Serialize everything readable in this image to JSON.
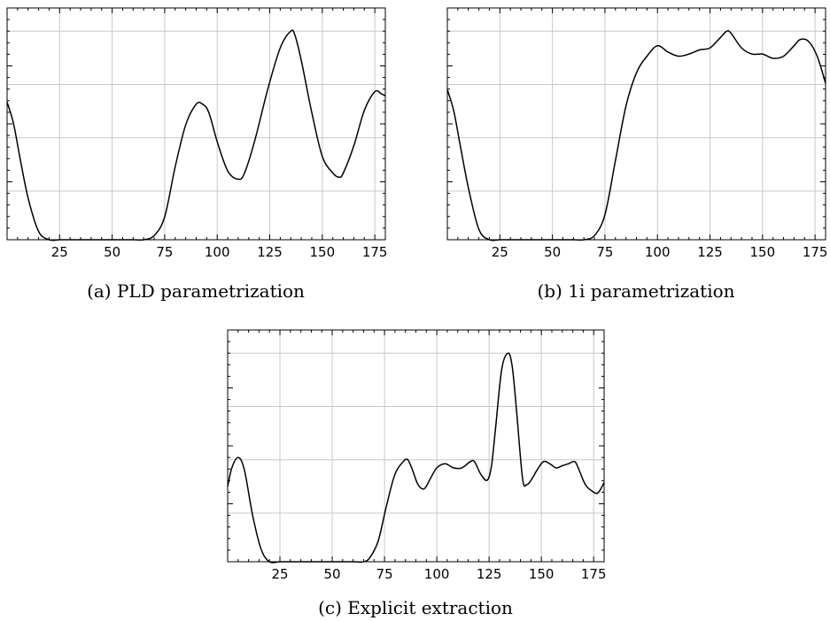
{
  "chart_data": [
    {
      "type": "line",
      "caption": "(a) PLD parametrization",
      "xlim": [
        0,
        180
      ],
      "ylim": [
        0,
        1
      ],
      "xticks": [
        25,
        50,
        75,
        100,
        125,
        150,
        175
      ],
      "grid": true,
      "series": [
        {
          "x": [
            0,
            3,
            6,
            10,
            15,
            20,
            25,
            30,
            40,
            50,
            60,
            65,
            70,
            75,
            80,
            85,
            90,
            93,
            96,
            100,
            105,
            110,
            113,
            118,
            124,
            130,
            135,
            137,
            140,
            145,
            150,
            155,
            158,
            160,
            165,
            170,
            175,
            178,
            180
          ],
          "y": [
            0.66,
            0.56,
            0.4,
            0.2,
            0.04,
            0.0,
            0.0,
            0.0,
            0.0,
            0.0,
            0.0,
            0.0,
            0.02,
            0.11,
            0.35,
            0.55,
            0.65,
            0.65,
            0.61,
            0.47,
            0.33,
            0.29,
            0.32,
            0.48,
            0.72,
            0.92,
            1.0,
            0.98,
            0.86,
            0.61,
            0.4,
            0.32,
            0.3,
            0.32,
            0.45,
            0.62,
            0.71,
            0.7,
            0.69
          ]
        }
      ]
    },
    {
      "type": "line",
      "caption": "(b) 1i parametrization",
      "xlim": [
        0,
        180
      ],
      "ylim": [
        0,
        1
      ],
      "xticks": [
        25,
        50,
        75,
        100,
        125,
        150,
        175
      ],
      "grid": true,
      "series": [
        {
          "x": [
            0,
            3,
            6,
            10,
            15,
            20,
            25,
            30,
            40,
            50,
            60,
            65,
            70,
            75,
            80,
            85,
            90,
            95,
            100,
            105,
            110,
            115,
            120,
            125,
            130,
            133,
            135,
            140,
            145,
            150,
            155,
            160,
            165,
            168,
            172,
            176,
            180
          ],
          "y": [
            0.72,
            0.62,
            0.46,
            0.25,
            0.05,
            0.0,
            0.0,
            0.0,
            0.0,
            0.0,
            0.0,
            0.0,
            0.02,
            0.12,
            0.38,
            0.64,
            0.8,
            0.88,
            0.93,
            0.9,
            0.88,
            0.89,
            0.91,
            0.92,
            0.97,
            1.0,
            0.99,
            0.92,
            0.89,
            0.89,
            0.87,
            0.88,
            0.93,
            0.96,
            0.95,
            0.88,
            0.75
          ]
        }
      ]
    },
    {
      "type": "line",
      "caption": "(c) Explicit extraction",
      "xlim": [
        0,
        180
      ],
      "ylim": [
        0,
        1
      ],
      "xticks": [
        25,
        50,
        75,
        100,
        125,
        150,
        175
      ],
      "grid": true,
      "series": [
        {
          "x": [
            0,
            2,
            5,
            8,
            12,
            16,
            20,
            25,
            30,
            40,
            50,
            60,
            65,
            68,
            72,
            76,
            80,
            84,
            86,
            88,
            91,
            94,
            97,
            100,
            104,
            108,
            112,
            116,
            118,
            121,
            124,
            126,
            128,
            131,
            134,
            136,
            138,
            141,
            143,
            145,
            148,
            151,
            154,
            157,
            160,
            163,
            166,
            168,
            171,
            174,
            177,
            180
          ],
          "y": [
            0.36,
            0.45,
            0.5,
            0.44,
            0.22,
            0.06,
            0.0,
            0.0,
            0.0,
            0.0,
            0.0,
            0.0,
            0.0,
            0.02,
            0.1,
            0.27,
            0.42,
            0.48,
            0.49,
            0.45,
            0.37,
            0.35,
            0.4,
            0.45,
            0.47,
            0.45,
            0.45,
            0.48,
            0.48,
            0.42,
            0.39,
            0.45,
            0.63,
            0.92,
            1.0,
            0.94,
            0.74,
            0.4,
            0.37,
            0.39,
            0.44,
            0.48,
            0.47,
            0.45,
            0.46,
            0.47,
            0.48,
            0.44,
            0.37,
            0.34,
            0.33,
            0.38
          ]
        }
      ]
    }
  ]
}
